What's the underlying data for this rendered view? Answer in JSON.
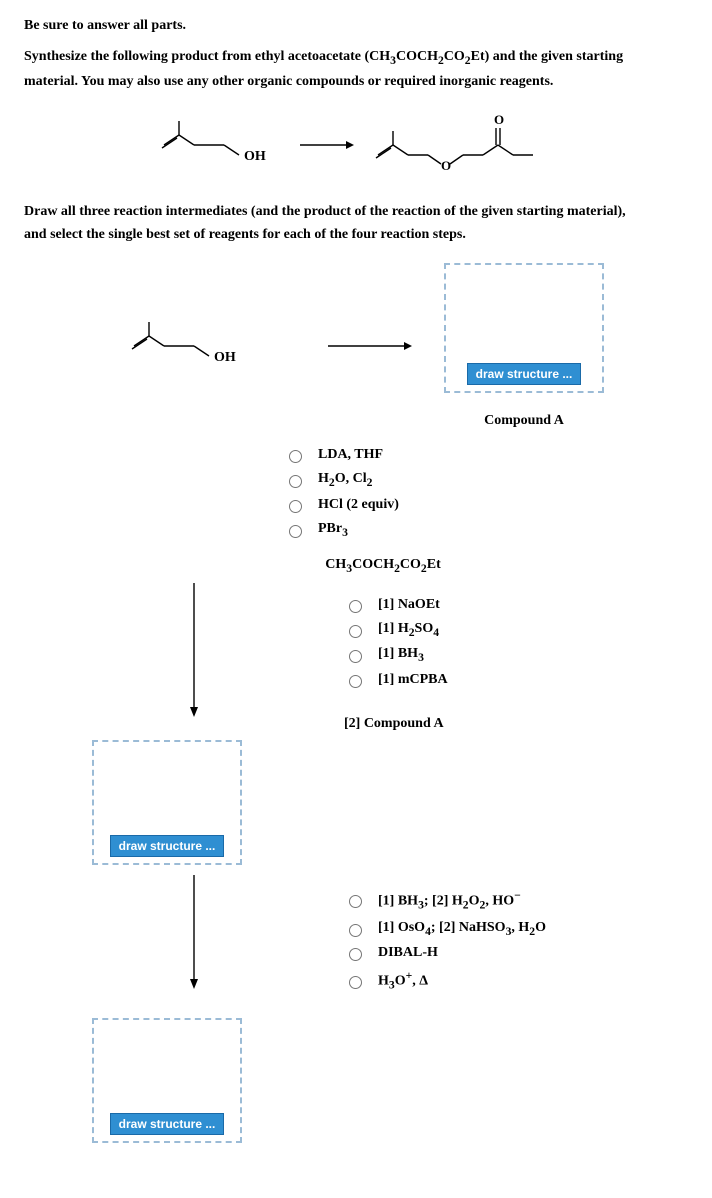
{
  "header": {
    "instruction": "Be sure to answer all parts."
  },
  "question": {
    "line1": "Synthesize the following product from ethyl acetoacetate (CH",
    "ea_sub1": "3",
    "line1b": "COCH",
    "ea_sub2": "2",
    "line1c": "CO",
    "ea_sub3": "2",
    "line1d": "Et) and the given starting",
    "line2": "material. You may also use any other organic compounds or required inorganic reagents."
  },
  "labels": {
    "oh": "OH",
    "oxygen": "O",
    "dbl_o": "O"
  },
  "instruction2": {
    "line1": "Draw all three reaction intermediates (and the product of the reaction of the given starting material),",
    "line2": "and select the single best set of reagents for each of the four reaction steps."
  },
  "draw_button": "draw structure ...",
  "compoundA": "Compound A",
  "step1_reagents": [
    {
      "text": "LDA, THF"
    },
    {
      "html": "H<sub>2</sub>O, Cl<sub>2</sub>"
    },
    {
      "text": "HCl (2 equiv)"
    },
    {
      "html": "PBr<sub>3</sub>"
    }
  ],
  "ea_label": {
    "pre": "CH",
    "s1": "3",
    "mid1": "COCH",
    "s2": "2",
    "mid2": "CO",
    "s3": "2",
    "post": "Et"
  },
  "step2_reagents": [
    {
      "text": "[1] NaOEt"
    },
    {
      "html": "[1] H<sub>2</sub>SO<sub>4</sub>"
    },
    {
      "html": "[1] BH<sub>3</sub>"
    },
    {
      "text": "[1] mCPBA"
    }
  ],
  "step2_then": "[2] Compound A",
  "step3_reagents": [
    {
      "html": "[1] BH<sub>3</sub>; [2] H<sub>2</sub>O<sub>2</sub>, HO<sup>−</sup>"
    },
    {
      "html": "[1] OsO<sub>4</sub>; [2] NaHSO<sub>3</sub>, H<sub>2</sub>O"
    },
    {
      "text": "DIBAL-H"
    },
    {
      "html": "H<sub>3</sub>O<sup>+</sup>, Δ"
    }
  ]
}
